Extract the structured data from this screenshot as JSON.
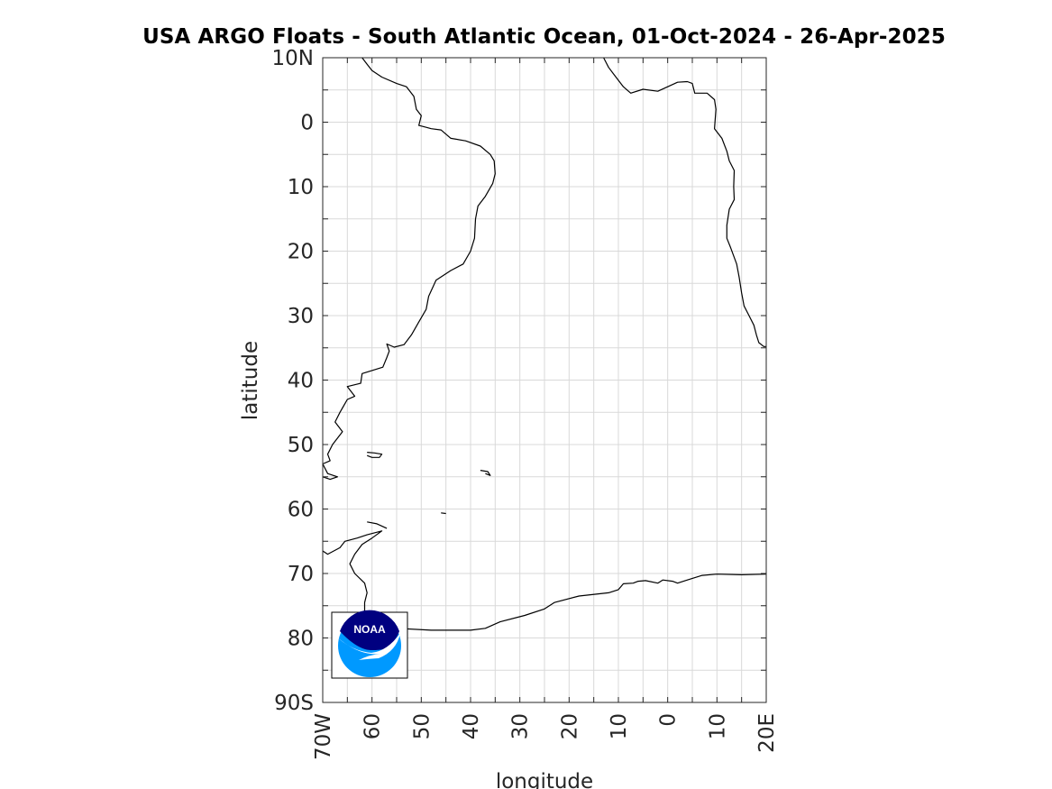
{
  "title": "USA ARGO Floats - South Atlantic Ocean, 01-Oct-2024 - 26-Apr-2025",
  "map": {
    "xlabel": "longitude",
    "ylabel": "latitude",
    "lon_range": [
      -70,
      20
    ],
    "lat_range": [
      -90,
      10
    ],
    "lon_grid_step": 5,
    "lat_grid_step": 5,
    "grid": true,
    "x_ticks": [
      {
        "value": -70,
        "label": "70W"
      },
      {
        "value": -60,
        "label": "60"
      },
      {
        "value": -50,
        "label": "50"
      },
      {
        "value": -40,
        "label": "40"
      },
      {
        "value": -30,
        "label": "30"
      },
      {
        "value": -20,
        "label": "20"
      },
      {
        "value": -10,
        "label": "10"
      },
      {
        "value": 0,
        "label": "0"
      },
      {
        "value": 10,
        "label": "10"
      },
      {
        "value": 20,
        "label": "20E"
      }
    ],
    "y_ticks": [
      {
        "value": 10,
        "label": "10N"
      },
      {
        "value": 0,
        "label": "0"
      },
      {
        "value": -10,
        "label": "10"
      },
      {
        "value": -20,
        "label": "20"
      },
      {
        "value": -30,
        "label": "30"
      },
      {
        "value": -40,
        "label": "40"
      },
      {
        "value": -50,
        "label": "50"
      },
      {
        "value": -60,
        "label": "60"
      },
      {
        "value": -70,
        "label": "70"
      },
      {
        "value": -80,
        "label": "80"
      },
      {
        "value": -90,
        "label": "90S"
      }
    ],
    "logo": {
      "text": "NOAA",
      "colors": {
        "dark": "#000080",
        "light": "#0099ff"
      }
    },
    "coastlines": {
      "south_america": [
        [
          -62,
          10
        ],
        [
          -61,
          9
        ],
        [
          -60,
          8
        ],
        [
          -58,
          7
        ],
        [
          -55,
          6
        ],
        [
          -53,
          5.5
        ],
        [
          -51.5,
          4
        ],
        [
          -51,
          2
        ],
        [
          -50,
          1
        ],
        [
          -50.5,
          -0.5
        ],
        [
          -49,
          -0.8
        ],
        [
          -48,
          -1
        ],
        [
          -46,
          -1.2
        ],
        [
          -44,
          -2.5
        ],
        [
          -41,
          -2.9
        ],
        [
          -38,
          -3.7
        ],
        [
          -36,
          -5
        ],
        [
          -35.2,
          -6
        ],
        [
          -35,
          -8
        ],
        [
          -35.5,
          -9.5
        ],
        [
          -37,
          -11.5
        ],
        [
          -38.5,
          -13
        ],
        [
          -39,
          -15
        ],
        [
          -39.2,
          -18
        ],
        [
          -40,
          -20
        ],
        [
          -41.5,
          -22
        ],
        [
          -44,
          -23
        ],
        [
          -47,
          -24.5
        ],
        [
          -48.5,
          -27
        ],
        [
          -49,
          -29
        ],
        [
          -50.5,
          -31
        ],
        [
          -52,
          -33
        ],
        [
          -53.5,
          -34.5
        ],
        [
          -55.5,
          -34.9
        ],
        [
          -57,
          -34.4
        ],
        [
          -56.5,
          -35.5
        ],
        [
          -57,
          -36.5
        ],
        [
          -57.8,
          -38
        ],
        [
          -62,
          -39
        ],
        [
          -62.3,
          -40.5
        ],
        [
          -65,
          -41
        ],
        [
          -63.5,
          -42.5
        ],
        [
          -65,
          -43
        ],
        [
          -66.5,
          -45
        ],
        [
          -67.5,
          -46.5
        ],
        [
          -66,
          -48
        ],
        [
          -68,
          -50
        ],
        [
          -69,
          -51.5
        ],
        [
          -68.5,
          -52.5
        ],
        [
          -70,
          -53
        ],
        [
          -69,
          -54.5
        ],
        [
          -67,
          -55
        ],
        [
          -68.5,
          -55.4
        ],
        [
          -70,
          -55
        ]
      ],
      "falklands": [
        [
          -61,
          -51.2
        ],
        [
          -59.5,
          -51.3
        ],
        [
          -58,
          -51.5
        ],
        [
          -58.5,
          -52
        ],
        [
          -60,
          -52
        ],
        [
          -61,
          -51.7
        ]
      ],
      "south_georgia": [
        [
          -38,
          -54
        ],
        [
          -36.5,
          -54.2
        ],
        [
          -36,
          -54.8
        ],
        [
          -37,
          -54.5
        ]
      ],
      "south_orkney": [
        [
          -46,
          -60.6
        ],
        [
          -45,
          -60.7
        ]
      ],
      "south_shetland": [
        [
          -61,
          -62
        ],
        [
          -59,
          -62.3
        ],
        [
          -57,
          -63
        ]
      ],
      "antarctic_peninsula": [
        [
          -70,
          -66.5
        ],
        [
          -69,
          -67
        ],
        [
          -66.5,
          -66
        ],
        [
          -65.5,
          -65
        ],
        [
          -63,
          -64.5
        ],
        [
          -61,
          -64
        ],
        [
          -58,
          -63.4
        ],
        [
          -60,
          -64.5
        ],
        [
          -62,
          -65.5
        ],
        [
          -63.5,
          -67
        ],
        [
          -64.5,
          -68.5
        ],
        [
          -63.5,
          -70
        ],
        [
          -61.5,
          -71.5
        ],
        [
          -61,
          -73
        ],
        [
          -61.5,
          -74.5
        ],
        [
          -61.5,
          -76
        ],
        [
          -63,
          -77.5
        ],
        [
          -61,
          -78
        ],
        [
          -55,
          -78.5
        ],
        [
          -48,
          -78.8
        ],
        [
          -40,
          -78.8
        ],
        [
          -37,
          -78.5
        ],
        [
          -34,
          -77.5
        ],
        [
          -29,
          -76.5
        ],
        [
          -25,
          -75.5
        ],
        [
          -23,
          -74.5
        ],
        [
          -18,
          -73.5
        ],
        [
          -12,
          -73
        ],
        [
          -10,
          -72.5
        ],
        [
          -9,
          -71.6
        ],
        [
          -7,
          -71.5
        ],
        [
          -6,
          -71.2
        ],
        [
          -4.5,
          -71.1
        ],
        [
          -2,
          -71.5
        ],
        [
          -1,
          -71
        ],
        [
          1,
          -71.2
        ],
        [
          2,
          -71.5
        ],
        [
          4,
          -71
        ],
        [
          7,
          -70.3
        ],
        [
          10,
          -70.1
        ],
        [
          15,
          -70.2
        ],
        [
          20,
          -70.1
        ]
      ],
      "africa": [
        [
          -13,
          10
        ],
        [
          -12,
          8.5
        ],
        [
          -11,
          7.5
        ],
        [
          -9,
          5.5
        ],
        [
          -7.5,
          4.5
        ],
        [
          -5,
          5.1
        ],
        [
          -2,
          4.8
        ],
        [
          0,
          5.5
        ],
        [
          2,
          6.2
        ],
        [
          4,
          6.3
        ],
        [
          5,
          6
        ],
        [
          5.5,
          4.5
        ],
        [
          8,
          4.5
        ],
        [
          9.5,
          3.5
        ],
        [
          9.8,
          2
        ],
        [
          9.5,
          -1
        ],
        [
          11,
          -2.5
        ],
        [
          12,
          -4.5
        ],
        [
          12.5,
          -6
        ],
        [
          13.5,
          -7.5
        ],
        [
          13.4,
          -10
        ],
        [
          13.5,
          -12
        ],
        [
          12.5,
          -13.5
        ],
        [
          12,
          -16
        ],
        [
          12,
          -18
        ],
        [
          12.8,
          -19.5
        ],
        [
          14,
          -22
        ],
        [
          14.5,
          -24
        ],
        [
          15,
          -26.5
        ],
        [
          15.5,
          -28.5
        ],
        [
          16.5,
          -30
        ],
        [
          17.5,
          -31.5
        ],
        [
          18,
          -33
        ],
        [
          18.5,
          -34.2
        ],
        [
          19.5,
          -34.8
        ],
        [
          20,
          -34.8
        ]
      ]
    }
  }
}
